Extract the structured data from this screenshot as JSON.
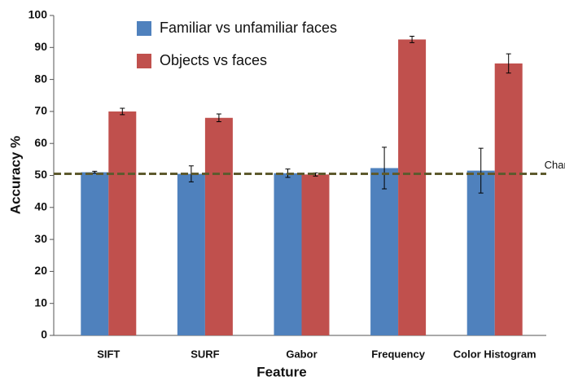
{
  "chart_data": {
    "type": "bar",
    "xlabel": "Feature",
    "ylabel": "Accuracy %",
    "categories": [
      "SIFT",
      "SURF",
      "Gabor",
      "Frequency",
      "Color Histogram"
    ],
    "series": [
      {
        "name": "Familiar vs unfamiliar faces",
        "color": "#4f81bd",
        "values": [
          51,
          50.5,
          50.7,
          52.3,
          51.5
        ],
        "errors": [
          0.3,
          2.5,
          1.3,
          6.5,
          7
        ]
      },
      {
        "name": "Objects vs faces",
        "color": "#c0504d",
        "values": [
          70,
          68,
          50.3,
          92.5,
          85
        ],
        "errors": [
          1,
          1.2,
          0.5,
          1,
          3
        ]
      }
    ],
    "ylim": [
      0,
      100
    ],
    "yticks": [
      0,
      10,
      20,
      30,
      40,
      50,
      60,
      70,
      80,
      90,
      100
    ],
    "annotations": [
      {
        "text": "Chance",
        "value": 50.5
      }
    ]
  }
}
